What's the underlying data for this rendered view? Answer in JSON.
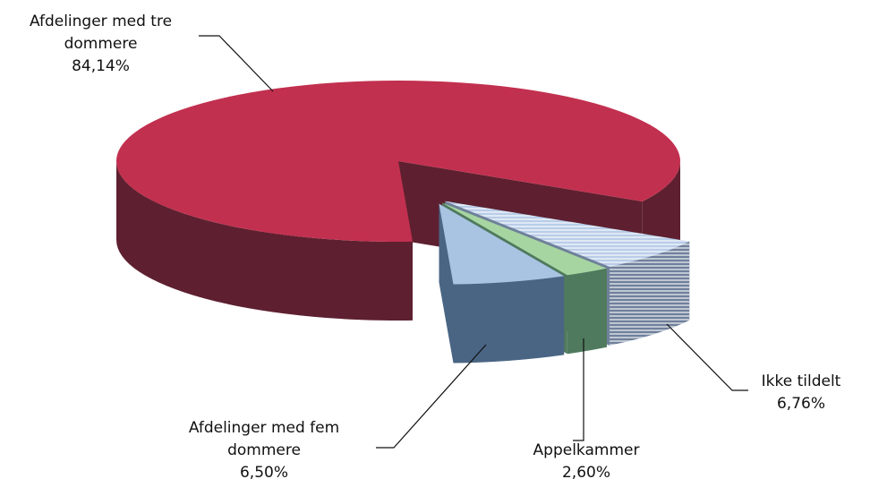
{
  "chart_data": {
    "type": "pie3d",
    "categories": [
      "Afdelinger med tre dommere",
      "Afdelinger med fem dommere",
      "Appelkammer",
      "Ikke tildelt"
    ],
    "values": [
      84.14,
      6.5,
      2.6,
      6.76
    ],
    "value_labels": [
      "84,14%",
      "6,50%",
      "2,60%",
      "6,76%"
    ],
    "colors": [
      "#c2304f",
      "#a9c4e2",
      "#a7d5a2",
      "#b9cde8"
    ],
    "side_colors": [
      "#5e2030",
      "#4a6584",
      "#4f7a5d",
      "#6f809b"
    ]
  }
}
